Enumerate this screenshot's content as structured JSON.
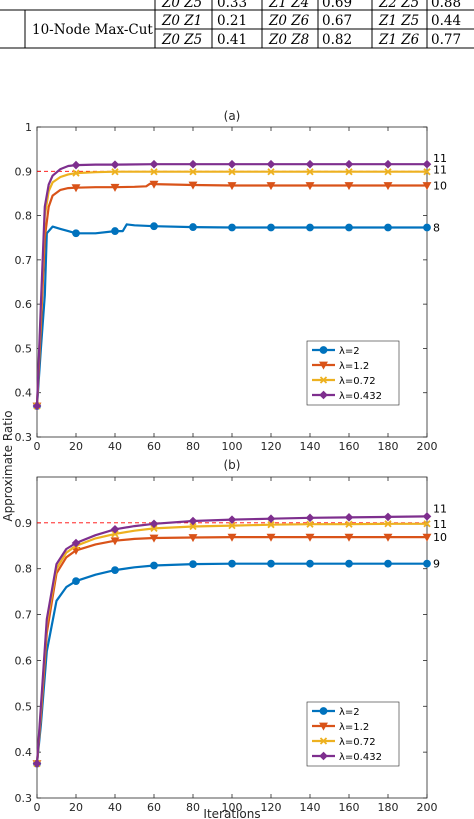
{
  "table": {
    "rows": [
      {
        "cells": [
          "Z0 Z5",
          "0.33",
          "Z1 Z4",
          "0.69",
          "Z2 Z5",
          "0.88"
        ]
      },
      {
        "cells": [
          "Z0 Z1",
          "0.21",
          "Z0 Z6",
          "0.67",
          "Z1 Z5",
          "0.44"
        ]
      },
      {
        "cells": [
          "Z0 Z5",
          "0.41",
          "Z0 Z8",
          "0.82",
          "Z1 Z6",
          "0.77"
        ]
      }
    ],
    "row_header": "10-Node Max-Cut"
  },
  "shared_ylabel": "Approximate Ratio",
  "colors": {
    "lambda_2": "#0072BD",
    "lambda_1_2": "#D95319",
    "lambda_0_72": "#EDB120",
    "lambda_0_432": "#7E2F8E",
    "reference": "#FF0000"
  },
  "chart_data": [
    {
      "type": "line",
      "title": "(a)",
      "xlabel": "",
      "ylabel": "Approximate Ratio",
      "xlim": [
        0,
        200
      ],
      "ylim": [
        0.3,
        1
      ],
      "xticks": [
        0,
        20,
        40,
        60,
        80,
        100,
        120,
        140,
        160,
        180,
        200
      ],
      "yticks": [
        0.3,
        0.4,
        0.5,
        0.6,
        0.7,
        0.8,
        0.9,
        1
      ],
      "reference_line": 0.9,
      "legend_position": "lower-right",
      "series": [
        {
          "name": "λ=2",
          "color": "#0072BD",
          "marker": "circle",
          "end_label": "8",
          "x": [
            0,
            2,
            4,
            5,
            8,
            12,
            16,
            20,
            30,
            40,
            44,
            46,
            50,
            60,
            80,
            100,
            120,
            140,
            160,
            180,
            200
          ],
          "y": [
            0.37,
            0.5,
            0.62,
            0.76,
            0.775,
            0.77,
            0.765,
            0.76,
            0.76,
            0.765,
            0.765,
            0.78,
            0.778,
            0.776,
            0.774,
            0.773,
            0.773,
            0.773,
            0.773,
            0.773,
            0.773
          ]
        },
        {
          "name": "λ=1.2",
          "color": "#D95319",
          "marker": "triangle-down",
          "end_label": "10",
          "x": [
            0,
            2,
            4,
            6,
            8,
            12,
            16,
            20,
            30,
            40,
            50,
            56,
            58,
            60,
            80,
            100,
            120,
            140,
            160,
            180,
            200
          ],
          "y": [
            0.37,
            0.55,
            0.75,
            0.82,
            0.845,
            0.858,
            0.862,
            0.863,
            0.864,
            0.864,
            0.865,
            0.866,
            0.872,
            0.871,
            0.869,
            0.868,
            0.868,
            0.868,
            0.868,
            0.868,
            0.868
          ]
        },
        {
          "name": "λ=0.72",
          "color": "#EDB120",
          "marker": "x",
          "end_label": "11",
          "x": [
            0,
            2,
            4,
            6,
            8,
            12,
            16,
            20,
            30,
            40,
            60,
            80,
            100,
            120,
            140,
            160,
            180,
            200
          ],
          "y": [
            0.37,
            0.58,
            0.8,
            0.855,
            0.875,
            0.887,
            0.893,
            0.896,
            0.898,
            0.899,
            0.899,
            0.899,
            0.899,
            0.899,
            0.899,
            0.899,
            0.899,
            0.899
          ]
        },
        {
          "name": "λ=0.432",
          "color": "#7E2F8E",
          "marker": "diamond",
          "end_label": "11",
          "x": [
            0,
            2,
            4,
            6,
            8,
            12,
            16,
            20,
            30,
            40,
            60,
            80,
            100,
            120,
            140,
            160,
            180,
            200
          ],
          "y": [
            0.37,
            0.6,
            0.82,
            0.87,
            0.89,
            0.905,
            0.912,
            0.914,
            0.915,
            0.915,
            0.916,
            0.916,
            0.916,
            0.916,
            0.916,
            0.916,
            0.916,
            0.916
          ]
        }
      ]
    },
    {
      "type": "line",
      "title": "(b)",
      "xlabel": "Iterations",
      "ylabel": "Approximate Ratio",
      "xlim": [
        0,
        200
      ],
      "ylim": [
        0.3,
        1
      ],
      "xticks": [
        0,
        20,
        40,
        60,
        80,
        100,
        120,
        140,
        160,
        180,
        200
      ],
      "yticks": [
        0.3,
        0.4,
        0.5,
        0.6,
        0.7,
        0.8,
        0.9
      ],
      "reference_line": 0.9,
      "legend_position": "lower-right",
      "series": [
        {
          "name": "λ=2",
          "color": "#0072BD",
          "marker": "circle",
          "end_label": "9",
          "x": [
            0,
            2,
            5,
            10,
            15,
            20,
            30,
            40,
            50,
            60,
            80,
            100,
            120,
            140,
            160,
            180,
            200
          ],
          "y": [
            0.375,
            0.46,
            0.62,
            0.73,
            0.76,
            0.773,
            0.787,
            0.797,
            0.803,
            0.807,
            0.81,
            0.811,
            0.811,
            0.811,
            0.811,
            0.811,
            0.811
          ]
        },
        {
          "name": "λ=1.2",
          "color": "#D95319",
          "marker": "triangle-down",
          "end_label": "10",
          "x": [
            0,
            2,
            5,
            10,
            15,
            20,
            30,
            40,
            50,
            60,
            80,
            100,
            120,
            140,
            160,
            180,
            200
          ],
          "y": [
            0.375,
            0.48,
            0.66,
            0.79,
            0.825,
            0.84,
            0.853,
            0.861,
            0.865,
            0.867,
            0.868,
            0.869,
            0.869,
            0.869,
            0.869,
            0.869,
            0.869
          ]
        },
        {
          "name": "λ=0.72",
          "color": "#EDB120",
          "marker": "x",
          "end_label": "11",
          "x": [
            0,
            2,
            5,
            10,
            15,
            20,
            30,
            40,
            50,
            60,
            80,
            100,
            120,
            140,
            160,
            180,
            200
          ],
          "y": [
            0.375,
            0.49,
            0.68,
            0.8,
            0.835,
            0.85,
            0.866,
            0.876,
            0.883,
            0.888,
            0.892,
            0.894,
            0.896,
            0.897,
            0.897,
            0.898,
            0.898
          ]
        },
        {
          "name": "λ=0.432",
          "color": "#7E2F8E",
          "marker": "diamond",
          "end_label": "11",
          "x": [
            0,
            2,
            5,
            10,
            15,
            20,
            30,
            40,
            50,
            60,
            80,
            100,
            120,
            140,
            160,
            180,
            200
          ],
          "y": [
            0.375,
            0.5,
            0.69,
            0.81,
            0.843,
            0.856,
            0.873,
            0.886,
            0.893,
            0.898,
            0.904,
            0.907,
            0.909,
            0.911,
            0.912,
            0.913,
            0.914
          ]
        }
      ]
    }
  ]
}
